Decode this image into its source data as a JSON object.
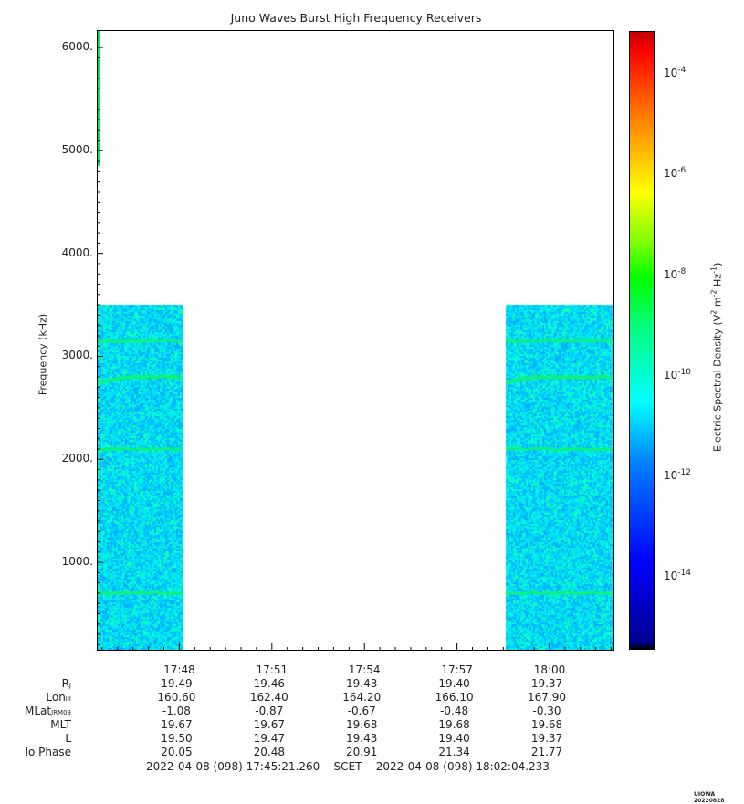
{
  "chart_data": {
    "type": "heatmap",
    "title": "Juno Waves Burst High Frequency Receivers",
    "ylabel": "Frequency (kHz)",
    "ylim": [
      150,
      6160
    ],
    "y_ticks": [
      "1000.",
      "2000.",
      "3000.",
      "4000.",
      "5000.",
      "6000."
    ],
    "x_ticks": [
      "17:48",
      "17:51",
      "17:54",
      "17:57",
      "18:00"
    ],
    "time_range": [
      "17:45:21.260",
      "18:02:04.233"
    ],
    "data_segments": [
      {
        "start": "17:45:21",
        "end": "17:48:07",
        "freq_max_khz": 3500
      },
      {
        "start": "17:58:35",
        "end": "18:02:04",
        "freq_max_khz": 3500
      }
    ],
    "background_level": "1e-12",
    "emission_bands_khz": [
      3150,
      2800,
      2100,
      700
    ],
    "colorbar": {
      "label": "Electric Spectral Density (V2 m-2 Hz-1)",
      "ticks": [
        {
          "base": "10",
          "exp": "-4"
        },
        {
          "base": "10",
          "exp": "-6"
        },
        {
          "base": "10",
          "exp": "-8"
        },
        {
          "base": "10",
          "exp": "-10"
        },
        {
          "base": "10",
          "exp": "-12"
        },
        {
          "base": "10",
          "exp": "-14"
        }
      ],
      "scale": "log"
    }
  },
  "ephemeris": {
    "rows": [
      {
        "label": "R",
        "sub": "J",
        "values": [
          "19.49",
          "19.46",
          "19.43",
          "19.40",
          "19.37"
        ]
      },
      {
        "label": "Lon",
        "sub": "III",
        "values": [
          "160.60",
          "162.40",
          "164.20",
          "166.10",
          "167.90"
        ]
      },
      {
        "label": "MLat",
        "sub": "JRM09",
        "values": [
          "-1.08",
          "-0.87",
          "-0.67",
          "-0.48",
          "-0.30"
        ]
      },
      {
        "label": "MLT",
        "sub": "",
        "values": [
          "19.67",
          "19.67",
          "19.68",
          "19.68",
          "19.68"
        ]
      },
      {
        "label": "L",
        "sub": "",
        "values": [
          "19.50",
          "19.47",
          "19.43",
          "19.40",
          "19.37"
        ]
      },
      {
        "label": "Io Phase",
        "sub": "",
        "values": [
          "20.05",
          "20.48",
          "20.91",
          "21.34",
          "21.77"
        ]
      }
    ]
  },
  "footer": {
    "start": "2022-04-08 (098) 17:45:21.260",
    "mid": "SCET",
    "end": "2022-04-08 (098) 18:02:04.233"
  },
  "version_tag": "UIOWA 20220828"
}
